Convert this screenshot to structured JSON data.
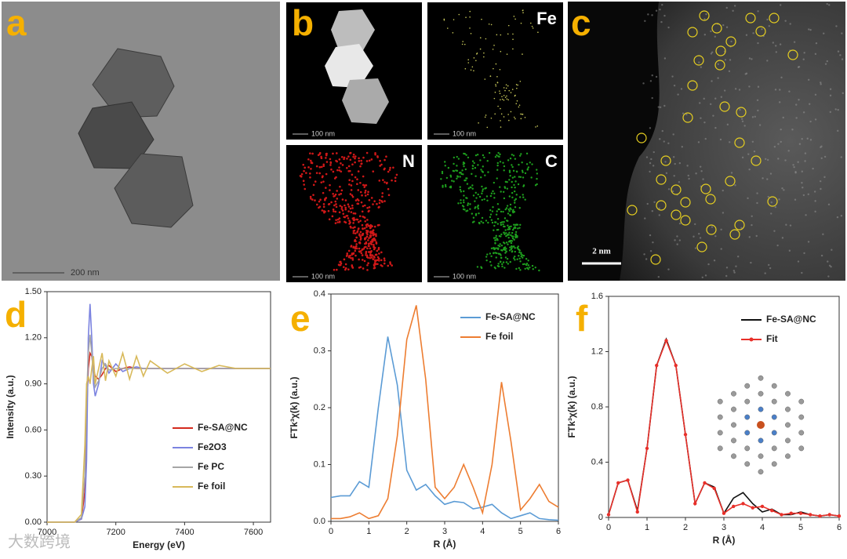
{
  "panels": {
    "a": {
      "label": "a",
      "scale_bar": "200 nm"
    },
    "b": {
      "label": "b",
      "tiles": [
        {
          "scale_bar": "100 nm"
        },
        {
          "element": "Fe",
          "scale_bar": "100 nm"
        },
        {
          "element": "N",
          "scale_bar": "100 nm"
        },
        {
          "element": "C",
          "scale_bar": "100 nm"
        }
      ]
    },
    "c": {
      "label": "c",
      "scale_bar": "2 nm"
    }
  },
  "watermark": "大数跨境",
  "chart_data": [
    {
      "type": "line",
      "panel_label": "d",
      "xlabel": "Energy (eV)",
      "ylabel": "Intensity (a.u.)",
      "x": [
        7000,
        7080,
        7100,
        7110,
        7115,
        7120,
        7125,
        7130,
        7135,
        7140,
        7150,
        7160,
        7170,
        7180,
        7200,
        7220,
        7240,
        7260,
        7280,
        7300,
        7350,
        7400,
        7450,
        7500,
        7550,
        7600,
        7650
      ],
      "series": [
        {
          "name": "Fe-SA@NC",
          "color": "#d42a1e",
          "values": [
            0,
            0,
            0.02,
            0.2,
            0.7,
            1.0,
            1.1,
            1.08,
            1.0,
            0.95,
            0.93,
            0.96,
            1.0,
            1.02,
            0.98,
            1.0,
            1.01,
            1.0,
            1.0,
            1.0,
            1.0,
            1.0,
            1.0,
            1.0,
            1.0,
            1.0,
            1.0
          ]
        },
        {
          "name": "Fe2O3",
          "color": "#7b83e0",
          "values": [
            0,
            0,
            0.02,
            0.1,
            0.4,
            1.2,
            1.42,
            1.2,
            0.9,
            0.82,
            0.9,
            1.05,
            1.02,
            0.97,
            1.03,
            0.98,
            1.0,
            1.01,
            1.0,
            1.0,
            1.0,
            1.0,
            1.0,
            1.0,
            1.0,
            1.0,
            1.0
          ]
        },
        {
          "name": "Fe PC",
          "color": "#a6a6a6",
          "values": [
            0,
            0,
            0.03,
            0.3,
            0.8,
            1.1,
            1.22,
            1.1,
            0.95,
            0.88,
            0.92,
            1.0,
            1.03,
            0.99,
            1.0,
            1.0,
            1.0,
            1.0,
            1.0,
            1.0,
            1.0,
            1.0,
            1.0,
            1.0,
            1.0,
            1.0,
            1.0
          ]
        },
        {
          "name": "Fe foil",
          "color": "#d8b95a",
          "values": [
            0,
            0,
            0.05,
            0.5,
            0.9,
            0.95,
            0.9,
            1.0,
            1.08,
            0.9,
            1.0,
            1.1,
            0.92,
            1.05,
            0.95,
            1.1,
            0.93,
            1.08,
            0.95,
            1.05,
            0.97,
            1.03,
            0.98,
            1.02,
            1.0,
            1.0,
            1.0
          ]
        }
      ],
      "xlim": [
        7000,
        7650
      ],
      "xticks": [
        7000,
        7200,
        7400,
        7600
      ],
      "ylim": [
        0,
        1.5
      ],
      "yticks": [
        {
          "value": 0,
          "label": "0.00"
        },
        {
          "value": 0.3,
          "label": "0.30"
        },
        {
          "value": 0.6,
          "label": "0.60"
        },
        {
          "value": 0.9,
          "label": "0.90"
        },
        {
          "value": 1.2,
          "label": "1.20"
        },
        {
          "value": 1.5,
          "label": "1.50"
        }
      ],
      "legend": "lower right"
    },
    {
      "type": "line",
      "panel_label": "e",
      "xlabel": "R (Å)",
      "ylabel": "FTk³χ(k) (a.u.)",
      "x": [
        0,
        0.25,
        0.5,
        0.75,
        1,
        1.25,
        1.5,
        1.75,
        2,
        2.25,
        2.5,
        2.75,
        3,
        3.25,
        3.5,
        3.75,
        4,
        4.25,
        4.5,
        4.75,
        5,
        5.25,
        5.5,
        5.75,
        6
      ],
      "series": [
        {
          "name": "Fe-SA@NC",
          "color": "#5b9bd5",
          "values": [
            0.042,
            0.045,
            0.045,
            0.07,
            0.06,
            0.2,
            0.325,
            0.24,
            0.09,
            0.055,
            0.065,
            0.045,
            0.03,
            0.035,
            0.033,
            0.022,
            0.025,
            0.03,
            0.015,
            0.005,
            0.01,
            0.015,
            0.005,
            0.003,
            0.002
          ]
        },
        {
          "name": "Fe foil",
          "color": "#ed7d31",
          "values": [
            0.005,
            0.005,
            0.008,
            0.015,
            0.005,
            0.01,
            0.04,
            0.15,
            0.32,
            0.38,
            0.25,
            0.06,
            0.04,
            0.06,
            0.1,
            0.06,
            0.015,
            0.1,
            0.245,
            0.14,
            0.02,
            0.04,
            0.065,
            0.035,
            0.025
          ]
        }
      ],
      "xlim": [
        0,
        6
      ],
      "xticks": [
        0,
        1,
        2,
        3,
        4,
        5,
        6
      ],
      "ylim": [
        0,
        0.4
      ],
      "yticks": [
        {
          "value": 0,
          "label": "0.0"
        },
        0.1,
        0.2,
        0.3,
        0.4
      ],
      "legend": "upper right"
    },
    {
      "type": "line",
      "panel_label": "f",
      "xlabel": "R (Å)",
      "ylabel": "FTk³χ(k) (a.u.)",
      "x": [
        0,
        0.25,
        0.5,
        0.75,
        1,
        1.25,
        1.5,
        1.75,
        2,
        2.25,
        2.5,
        2.75,
        3,
        3.25,
        3.5,
        3.75,
        4,
        4.25,
        4.5,
        4.75,
        5,
        5.25,
        5.5,
        5.75,
        6
      ],
      "series": [
        {
          "name": "Fe-SA@NC",
          "color": "#111111",
          "values": [
            0.02,
            0.25,
            0.27,
            0.05,
            0.5,
            1.1,
            1.29,
            1.1,
            0.6,
            0.1,
            0.25,
            0.22,
            0.03,
            0.14,
            0.18,
            0.1,
            0.04,
            0.06,
            0.02,
            0.02,
            0.04,
            0.02,
            0.01,
            0.02,
            0.01
          ]
        },
        {
          "name": "Fit",
          "color": "#e8302a",
          "markers": true,
          "values": [
            0.02,
            0.25,
            0.27,
            0.04,
            0.5,
            1.1,
            1.28,
            1.1,
            0.6,
            0.1,
            0.25,
            0.21,
            0.03,
            0.08,
            0.1,
            0.07,
            0.08,
            0.05,
            0.02,
            0.03,
            0.03,
            0.02,
            0.01,
            0.02,
            0.01
          ]
        }
      ],
      "xlim": [
        0,
        6
      ],
      "xticks": [
        0,
        1,
        2,
        3,
        4,
        5,
        6
      ],
      "ylim": [
        0,
        1.6
      ],
      "yticks": [
        0,
        0.4,
        0.8,
        1.2,
        1.6
      ],
      "legend": "upper right"
    }
  ]
}
